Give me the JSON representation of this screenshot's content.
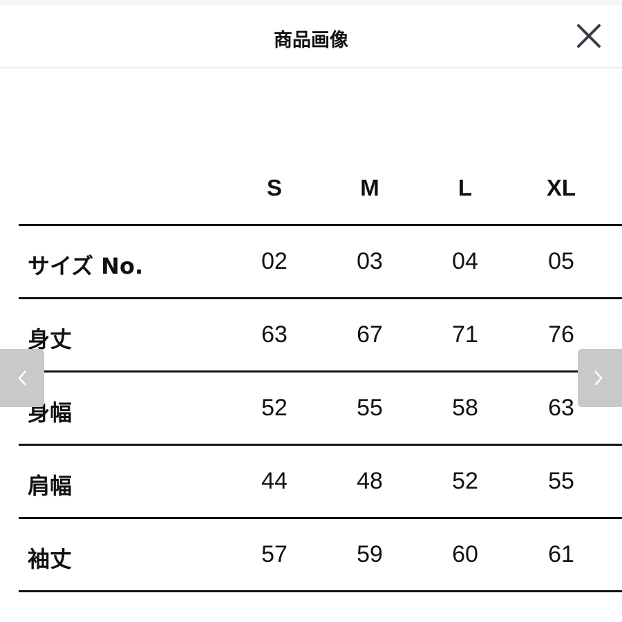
{
  "header": {
    "title": "商品画像",
    "close_icon": "close-icon"
  },
  "table": {
    "columns": [
      "S",
      "M",
      "L",
      "XL"
    ],
    "rows": [
      {
        "label": "サイズ No.",
        "values": [
          "02",
          "03",
          "04",
          "05"
        ]
      },
      {
        "label": "身丈",
        "values": [
          "63",
          "67",
          "71",
          "76"
        ]
      },
      {
        "label": "身幅",
        "values": [
          "52",
          "55",
          "58",
          "63"
        ]
      },
      {
        "label": "肩幅",
        "values": [
          "44",
          "48",
          "52",
          "55"
        ]
      },
      {
        "label": "袖丈",
        "values": [
          "57",
          "59",
          "60",
          "61"
        ]
      }
    ]
  },
  "nav": {
    "prev_icon": "chevron-left-icon",
    "next_icon": "chevron-right-icon"
  }
}
